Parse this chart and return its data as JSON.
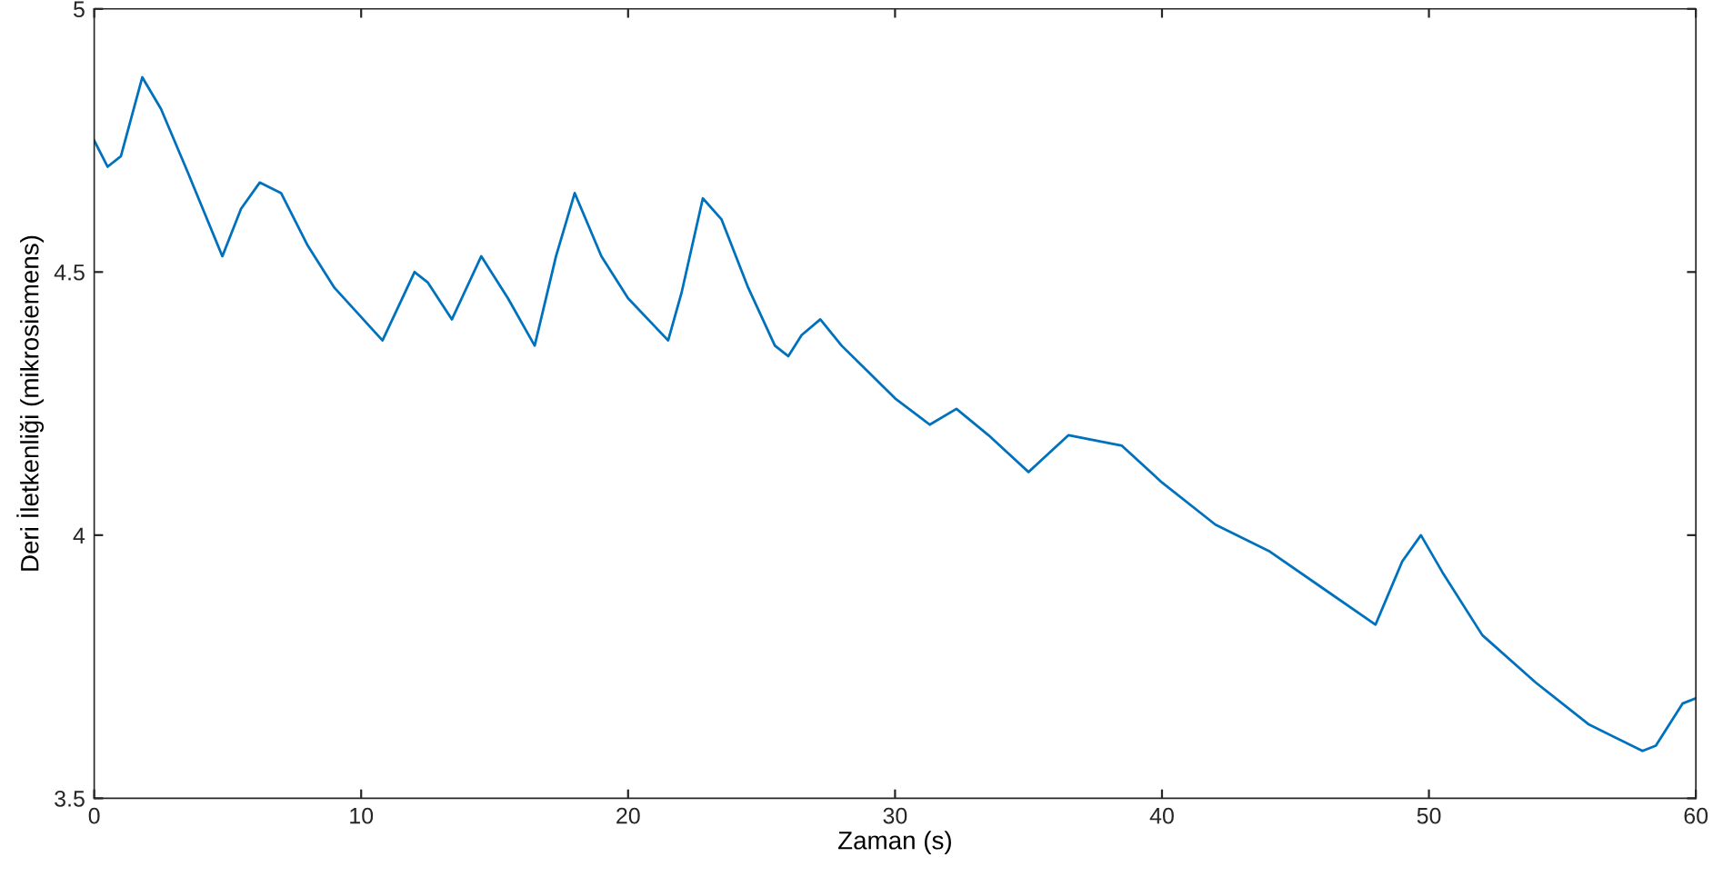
{
  "chart_data": {
    "type": "line",
    "xlabel": "Zaman (s)",
    "ylabel": "Deri İletkenliği (mikrosiemens)",
    "xlim": [
      0,
      60
    ],
    "xticks": [
      0,
      10,
      20,
      30,
      40,
      50,
      60
    ],
    "ylim": [
      3.5,
      5
    ],
    "yticks": [
      3.5,
      {
        "value": 4,
        "label": "4"
      },
      4.5,
      {
        "value": 5,
        "label": "5"
      }
    ],
    "grid": false,
    "legend": false,
    "series": [
      {
        "color": "#0072bd",
        "x": [
          0,
          0.5,
          1,
          1.8,
          2.5,
          3.5,
          4.8,
          5.5,
          6.2,
          7,
          8,
          9,
          10.8,
          12,
          12.5,
          13.4,
          14.5,
          15.5,
          16.5,
          17.3,
          18,
          19,
          20,
          21.5,
          22,
          22.8,
          23.5,
          24.5,
          25.5,
          26,
          26.5,
          27.2,
          28,
          29,
          30,
          31.3,
          32.3,
          33.5,
          35,
          36.5,
          37.5,
          38.5,
          40,
          42,
          44,
          46,
          48,
          49,
          49.7,
          50.5,
          52,
          54,
          56,
          58,
          58.5,
          59.5,
          60
        ],
        "values": [
          4.75,
          4.7,
          4.72,
          4.87,
          4.81,
          4.69,
          4.53,
          4.62,
          4.67,
          4.65,
          4.55,
          4.47,
          4.37,
          4.5,
          4.48,
          4.41,
          4.53,
          4.45,
          4.36,
          4.53,
          4.65,
          4.53,
          4.45,
          4.37,
          4.46,
          4.64,
          4.6,
          4.47,
          4.36,
          4.34,
          4.38,
          4.41,
          4.36,
          4.31,
          4.26,
          4.21,
          4.24,
          4.19,
          4.12,
          4.19,
          4.18,
          4.17,
          4.1,
          4.02,
          3.97,
          3.9,
          3.83,
          3.95,
          4.0,
          3.93,
          3.81,
          3.72,
          3.64,
          3.59,
          3.6,
          3.68,
          3.69
        ]
      }
    ]
  }
}
